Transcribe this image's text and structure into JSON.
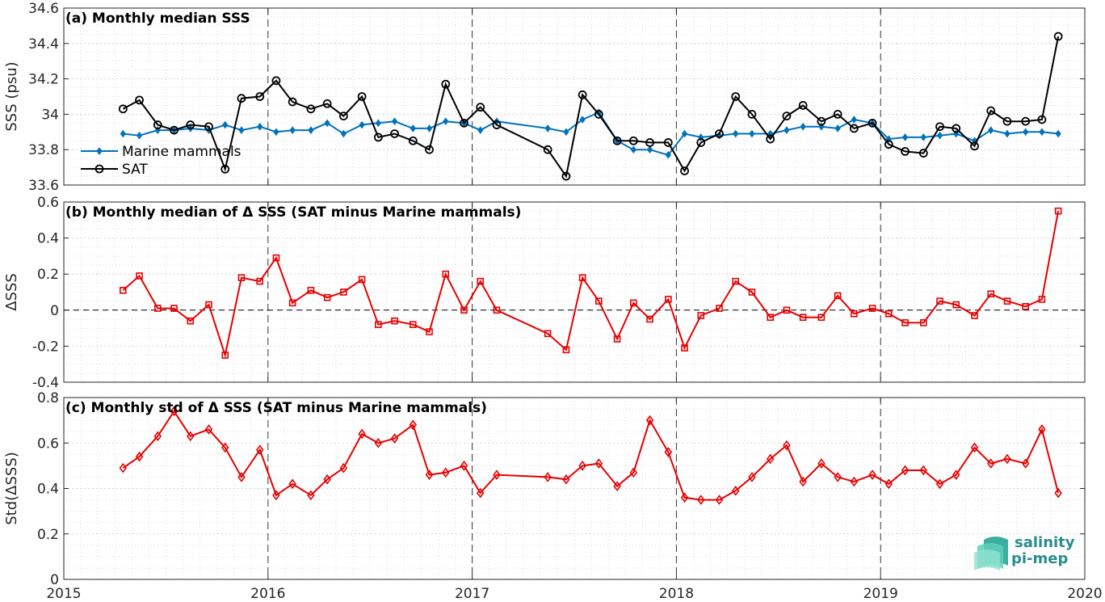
{
  "chart_data": [
    {
      "type": "line",
      "title": "(a) Monthly median SSS",
      "ylabel": "SSS (psu)",
      "xlim": [
        2015,
        2020
      ],
      "ylim": [
        33.6,
        34.6
      ],
      "yticks": [
        33.6,
        33.8,
        34,
        34.2,
        34.4,
        34.6
      ],
      "ytick_labels": [
        "33.6",
        "33.8",
        "34",
        "34.2",
        "34.4",
        "34.6"
      ],
      "grid": true,
      "legend_position": "lower-left",
      "series": [
        {
          "name": "Marine mammals",
          "color": "#0072bd",
          "marker": "diamond",
          "x": [
            2015.29,
            2015.37,
            2015.46,
            2015.54,
            2015.62,
            2015.71,
            2015.79,
            2015.87,
            2015.96,
            2016.04,
            2016.12,
            2016.21,
            2016.29,
            2016.37,
            2016.46,
            2016.54,
            2016.62,
            2016.71,
            2016.79,
            2016.87,
            2016.96,
            2017.04,
            2017.12,
            2017.37,
            2017.46,
            2017.54,
            2017.62,
            2017.71,
            2017.79,
            2017.87,
            2017.96,
            2018.04,
            2018.12,
            2018.21,
            2018.29,
            2018.37,
            2018.46,
            2018.54,
            2018.62,
            2018.71,
            2018.79,
            2018.87,
            2018.96,
            2019.04,
            2019.12,
            2019.21,
            2019.29,
            2019.37,
            2019.46,
            2019.54,
            2019.62,
            2019.71,
            2019.79,
            2019.87
          ],
          "y": [
            33.89,
            33.88,
            33.91,
            33.91,
            33.92,
            33.91,
            33.94,
            33.91,
            33.93,
            33.9,
            33.91,
            33.91,
            33.95,
            33.89,
            33.94,
            33.95,
            33.96,
            33.92,
            33.92,
            33.96,
            33.95,
            33.91,
            33.96,
            33.92,
            33.9,
            33.97,
            34.01,
            33.85,
            33.8,
            33.8,
            33.77,
            33.89,
            33.87,
            33.88,
            33.89,
            33.89,
            33.89,
            33.91,
            33.93,
            33.93,
            33.92,
            33.97,
            33.95,
            33.86,
            33.87,
            33.87,
            33.88,
            33.89,
            33.85,
            33.91,
            33.89,
            33.9,
            33.9,
            33.89
          ]
        },
        {
          "name": "SAT",
          "color": "#000000",
          "marker": "circle",
          "x": [
            2015.29,
            2015.37,
            2015.46,
            2015.54,
            2015.62,
            2015.71,
            2015.79,
            2015.87,
            2015.96,
            2016.04,
            2016.12,
            2016.21,
            2016.29,
            2016.37,
            2016.46,
            2016.54,
            2016.62,
            2016.71,
            2016.79,
            2016.87,
            2016.96,
            2017.04,
            2017.12,
            2017.37,
            2017.46,
            2017.54,
            2017.62,
            2017.71,
            2017.79,
            2017.87,
            2017.96,
            2018.04,
            2018.12,
            2018.21,
            2018.29,
            2018.37,
            2018.46,
            2018.54,
            2018.62,
            2018.71,
            2018.79,
            2018.87,
            2018.96,
            2019.04,
            2019.12,
            2019.21,
            2019.29,
            2019.37,
            2019.46,
            2019.54,
            2019.62,
            2019.71,
            2019.79,
            2019.87
          ],
          "y": [
            34.03,
            34.08,
            33.94,
            33.91,
            33.94,
            33.93,
            33.69,
            34.09,
            34.1,
            34.19,
            34.07,
            34.03,
            34.06,
            33.99,
            34.1,
            33.87,
            33.89,
            33.85,
            33.8,
            34.17,
            33.95,
            34.04,
            33.94,
            33.8,
            33.65,
            34.11,
            34.0,
            33.85,
            33.85,
            33.84,
            33.84,
            33.68,
            33.84,
            33.89,
            34.1,
            34.0,
            33.86,
            33.99,
            34.05,
            33.96,
            34.0,
            33.92,
            33.95,
            33.83,
            33.79,
            33.78,
            33.93,
            33.92,
            33.82,
            34.02,
            33.96,
            33.96,
            33.97,
            34.44
          ]
        }
      ]
    },
    {
      "type": "line",
      "title": "(b) Monthly median of Δ SSS (SAT minus Marine mammals)",
      "ylabel": "ΔSSS",
      "xlim": [
        2015,
        2020
      ],
      "ylim": [
        -0.4,
        0.6
      ],
      "yticks": [
        -0.4,
        -0.2,
        0,
        0.2,
        0.4,
        0.6
      ],
      "ytick_labels": [
        "-0.4",
        "-0.2",
        "0",
        "0.2",
        "0.4",
        "0.6"
      ],
      "grid": true,
      "zero_line": true,
      "series": [
        {
          "color": "#e60000",
          "marker": "square",
          "x": [
            2015.29,
            2015.37,
            2015.46,
            2015.54,
            2015.62,
            2015.71,
            2015.79,
            2015.87,
            2015.96,
            2016.04,
            2016.12,
            2016.21,
            2016.29,
            2016.37,
            2016.46,
            2016.54,
            2016.62,
            2016.71,
            2016.79,
            2016.87,
            2016.96,
            2017.04,
            2017.12,
            2017.37,
            2017.46,
            2017.54,
            2017.62,
            2017.71,
            2017.79,
            2017.87,
            2017.96,
            2018.04,
            2018.12,
            2018.21,
            2018.29,
            2018.37,
            2018.46,
            2018.54,
            2018.62,
            2018.71,
            2018.79,
            2018.87,
            2018.96,
            2019.04,
            2019.12,
            2019.21,
            2019.29,
            2019.37,
            2019.46,
            2019.54,
            2019.62,
            2019.71,
            2019.79,
            2019.87
          ],
          "y": [
            0.11,
            0.19,
            0.01,
            0.01,
            -0.06,
            0.03,
            -0.25,
            0.18,
            0.16,
            0.29,
            0.04,
            0.11,
            0.07,
            0.1,
            0.17,
            -0.08,
            -0.06,
            -0.08,
            -0.12,
            0.2,
            0.0,
            0.16,
            0.0,
            -0.13,
            -0.22,
            0.18,
            0.05,
            -0.16,
            0.04,
            -0.05,
            0.06,
            -0.21,
            -0.03,
            0.01,
            0.16,
            0.1,
            -0.04,
            0.0,
            -0.04,
            -0.04,
            0.08,
            -0.02,
            0.01,
            -0.02,
            -0.07,
            -0.07,
            0.05,
            0.03,
            -0.03,
            0.09,
            0.05,
            0.02,
            0.06,
            0.55
          ]
        }
      ]
    },
    {
      "type": "line",
      "title": "(c) Monthly std of Δ SSS (SAT minus Marine mammals)",
      "ylabel": "Std(ΔSSS)",
      "xlim": [
        2015,
        2020
      ],
      "ylim": [
        0,
        0.8
      ],
      "yticks": [
        0,
        0.2,
        0.4,
        0.6,
        0.8
      ],
      "ytick_labels": [
        "0",
        "0.2",
        "0.4",
        "0.6",
        "0.8"
      ],
      "xticks": [
        2015,
        2016,
        2017,
        2018,
        2019,
        2020
      ],
      "xtick_labels": [
        "2015",
        "2016",
        "2017",
        "2018",
        "2019",
        "2020"
      ],
      "grid": true,
      "series": [
        {
          "color": "#e60000",
          "marker": "diamond",
          "x": [
            2015.29,
            2015.37,
            2015.46,
            2015.54,
            2015.62,
            2015.71,
            2015.79,
            2015.87,
            2015.96,
            2016.04,
            2016.12,
            2016.21,
            2016.29,
            2016.37,
            2016.46,
            2016.54,
            2016.62,
            2016.71,
            2016.79,
            2016.87,
            2016.96,
            2017.04,
            2017.12,
            2017.37,
            2017.46,
            2017.54,
            2017.62,
            2017.71,
            2017.79,
            2017.87,
            2017.96,
            2018.04,
            2018.12,
            2018.21,
            2018.29,
            2018.37,
            2018.46,
            2018.54,
            2018.62,
            2018.71,
            2018.79,
            2018.87,
            2018.96,
            2019.04,
            2019.12,
            2019.21,
            2019.29,
            2019.37,
            2019.46,
            2019.54,
            2019.62,
            2019.71,
            2019.79,
            2019.87
          ],
          "y": [
            0.49,
            0.54,
            0.63,
            0.74,
            0.63,
            0.66,
            0.58,
            0.45,
            0.57,
            0.37,
            0.42,
            0.37,
            0.44,
            0.49,
            0.64,
            0.6,
            0.62,
            0.68,
            0.46,
            0.47,
            0.5,
            0.38,
            0.46,
            0.45,
            0.44,
            0.5,
            0.51,
            0.41,
            0.47,
            0.7,
            0.56,
            0.36,
            0.35,
            0.35,
            0.39,
            0.45,
            0.53,
            0.59,
            0.43,
            0.51,
            0.45,
            0.43,
            0.46,
            0.42,
            0.48,
            0.48,
            0.42,
            0.46,
            0.58,
            0.51,
            0.53,
            0.51,
            0.66,
            0.38
          ]
        }
      ]
    }
  ],
  "logo": {
    "line1": "salinity",
    "line2": "pi-mep",
    "color": "#2a8c8c"
  }
}
